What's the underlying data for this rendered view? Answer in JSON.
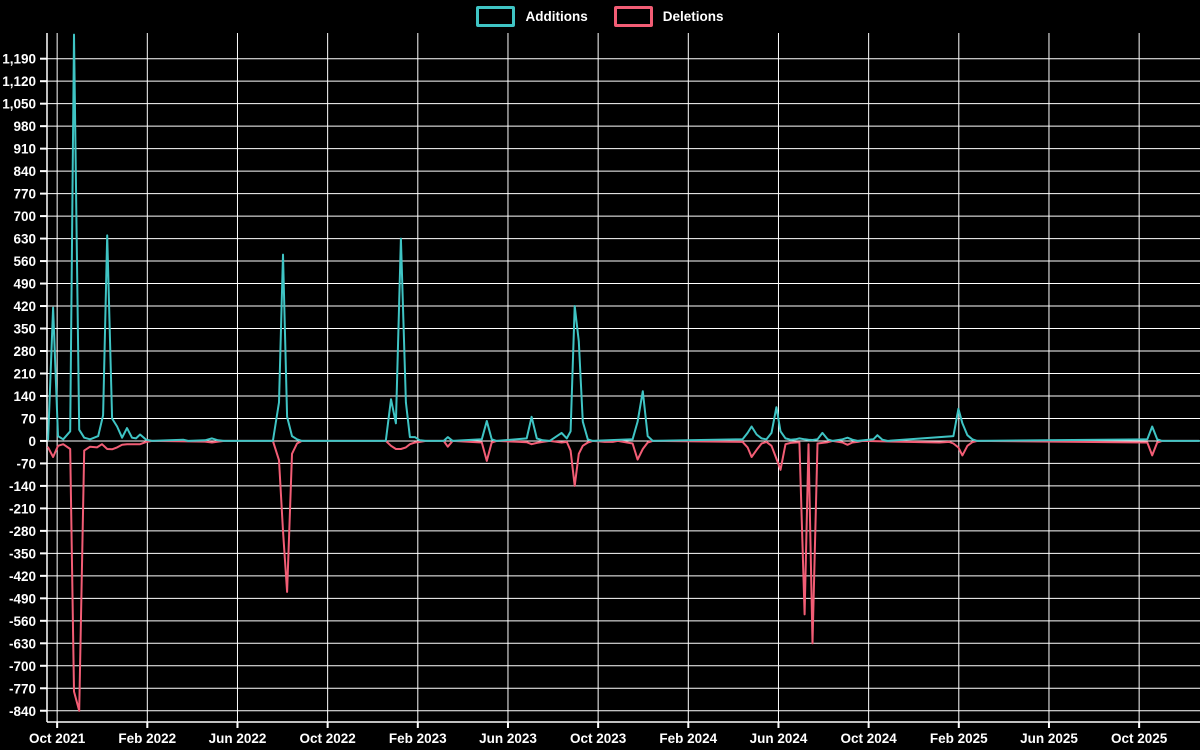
{
  "legend": {
    "items": [
      {
        "label": "Additions",
        "color": "#3fc4c4"
      },
      {
        "label": "Deletions",
        "color": "#f25d75"
      }
    ]
  },
  "chart_data": {
    "type": "line",
    "title": "",
    "xlabel": "",
    "ylabel": "",
    "background": "#000000",
    "grid_color": "#ffffff",
    "text_color": "#ffffff",
    "legend_position": "top-center",
    "x_unit": "months since Oct 2021",
    "x_ticks": [
      {
        "m": 0,
        "label": "Oct 2021"
      },
      {
        "m": 4,
        "label": "Feb 2022"
      },
      {
        "m": 8,
        "label": "Jun 2022"
      },
      {
        "m": 12,
        "label": "Oct 2022"
      },
      {
        "m": 16,
        "label": "Feb 2023"
      },
      {
        "m": 20,
        "label": "Jun 2023"
      },
      {
        "m": 24,
        "label": "Oct 2023"
      },
      {
        "m": 28,
        "label": "Feb 2024"
      },
      {
        "m": 32,
        "label": "Jun 2024"
      },
      {
        "m": 36,
        "label": "Oct 2024"
      },
      {
        "m": 40,
        "label": "Feb 2025"
      },
      {
        "m": 44,
        "label": "Jun 2025"
      },
      {
        "m": 48,
        "label": "Oct 2025"
      }
    ],
    "y_tick_min": -840,
    "y_tick_max": 1190,
    "y_tick_step": 70,
    "xlim": [
      -0.45,
      50.7
    ],
    "ylim": [
      -875,
      1270
    ],
    "series": [
      {
        "name": "Additions",
        "color": "#3fc4c4",
        "points": [
          [
            -0.4,
            5
          ],
          [
            -0.18,
            415
          ],
          [
            0.04,
            15
          ],
          [
            0.27,
            5
          ],
          [
            0.58,
            30
          ],
          [
            0.75,
            1265
          ],
          [
            0.98,
            35
          ],
          [
            1.2,
            10
          ],
          [
            1.46,
            5
          ],
          [
            1.82,
            15
          ],
          [
            2.04,
            80
          ],
          [
            2.22,
            640
          ],
          [
            2.44,
            70
          ],
          [
            2.66,
            45
          ],
          [
            2.88,
            10
          ],
          [
            3.1,
            40
          ],
          [
            3.32,
            10
          ],
          [
            3.5,
            8
          ],
          [
            3.68,
            20
          ],
          [
            3.95,
            4
          ],
          [
            4.21,
            0
          ],
          [
            5.59,
            4
          ],
          [
            5.81,
            0
          ],
          [
            6.56,
            2
          ],
          [
            6.87,
            8
          ],
          [
            7.14,
            2
          ],
          [
            7.4,
            0
          ],
          [
            9.57,
            0
          ],
          [
            9.84,
            120
          ],
          [
            10.02,
            580
          ],
          [
            10.2,
            75
          ],
          [
            10.42,
            15
          ],
          [
            10.64,
            5
          ],
          [
            10.86,
            0
          ],
          [
            14.58,
            0
          ],
          [
            14.81,
            130
          ],
          [
            15.03,
            55
          ],
          [
            15.25,
            630
          ],
          [
            15.47,
            120
          ],
          [
            15.65,
            12
          ],
          [
            15.87,
            12
          ],
          [
            16.09,
            2
          ],
          [
            16.36,
            0
          ],
          [
            17.15,
            0
          ],
          [
            17.33,
            12
          ],
          [
            17.55,
            0
          ],
          [
            18.84,
            5
          ],
          [
            19.06,
            62
          ],
          [
            19.28,
            5
          ],
          [
            19.5,
            0
          ],
          [
            20.83,
            8
          ],
          [
            21.05,
            75
          ],
          [
            21.28,
            8
          ],
          [
            21.54,
            2
          ],
          [
            21.85,
            0
          ],
          [
            22.38,
            25
          ],
          [
            22.61,
            8
          ],
          [
            22.78,
            30
          ],
          [
            22.96,
            420
          ],
          [
            23.14,
            310
          ],
          [
            23.32,
            60
          ],
          [
            23.54,
            5
          ],
          [
            23.76,
            0
          ],
          [
            25.53,
            5
          ],
          [
            25.75,
            60
          ],
          [
            25.98,
            155
          ],
          [
            26.2,
            15
          ],
          [
            26.42,
            0
          ],
          [
            30.41,
            5
          ],
          [
            30.63,
            25
          ],
          [
            30.81,
            45
          ],
          [
            31.03,
            20
          ],
          [
            31.25,
            8
          ],
          [
            31.47,
            5
          ],
          [
            31.69,
            25
          ],
          [
            31.91,
            105
          ],
          [
            32.09,
            30
          ],
          [
            32.31,
            8
          ],
          [
            32.54,
            4
          ],
          [
            32.76,
            5
          ],
          [
            32.93,
            8
          ],
          [
            33.16,
            5
          ],
          [
            33.33,
            4
          ],
          [
            33.51,
            3
          ],
          [
            33.73,
            5
          ],
          [
            33.95,
            25
          ],
          [
            34.18,
            5
          ],
          [
            34.4,
            0
          ],
          [
            34.84,
            5
          ],
          [
            35.06,
            10
          ],
          [
            35.28,
            4
          ],
          [
            35.51,
            0
          ],
          [
            36.21,
            5
          ],
          [
            36.39,
            18
          ],
          [
            36.61,
            4
          ],
          [
            36.83,
            0
          ],
          [
            39.76,
            15
          ],
          [
            39.98,
            100
          ],
          [
            40.16,
            55
          ],
          [
            40.38,
            18
          ],
          [
            40.6,
            5
          ],
          [
            40.82,
            0
          ],
          [
            48.36,
            5
          ],
          [
            48.58,
            45
          ],
          [
            48.8,
            5
          ],
          [
            49.02,
            0
          ],
          [
            50.66,
            0
          ]
        ]
      },
      {
        "name": "Deletions",
        "color": "#f25d75",
        "points": [
          [
            -0.4,
            -20
          ],
          [
            -0.18,
            -50
          ],
          [
            0.04,
            -15
          ],
          [
            0.27,
            -10
          ],
          [
            0.58,
            -25
          ],
          [
            0.75,
            -780
          ],
          [
            0.98,
            -840
          ],
          [
            1.2,
            -30
          ],
          [
            1.46,
            -18
          ],
          [
            1.77,
            -20
          ],
          [
            1.99,
            -10
          ],
          [
            2.22,
            -25
          ],
          [
            2.44,
            -26
          ],
          [
            2.66,
            -20
          ],
          [
            2.88,
            -12
          ],
          [
            3.1,
            -10
          ],
          [
            3.32,
            -10
          ],
          [
            3.68,
            -10
          ],
          [
            3.95,
            -3
          ],
          [
            4.21,
            0
          ],
          [
            6.56,
            -2
          ],
          [
            6.87,
            -5
          ],
          [
            7.14,
            -2
          ],
          [
            7.4,
            0
          ],
          [
            9.57,
            0
          ],
          [
            9.84,
            -60
          ],
          [
            10.02,
            -280
          ],
          [
            10.2,
            -470
          ],
          [
            10.42,
            -40
          ],
          [
            10.64,
            -8
          ],
          [
            10.86,
            0
          ],
          [
            14.58,
            0
          ],
          [
            14.81,
            -15
          ],
          [
            15.03,
            -25
          ],
          [
            15.25,
            -25
          ],
          [
            15.47,
            -20
          ],
          [
            15.65,
            -10
          ],
          [
            15.87,
            -5
          ],
          [
            16.09,
            -3
          ],
          [
            16.36,
            0
          ],
          [
            17.15,
            0
          ],
          [
            17.33,
            -18
          ],
          [
            17.55,
            0
          ],
          [
            18.84,
            -5
          ],
          [
            19.06,
            -62
          ],
          [
            19.28,
            -5
          ],
          [
            19.5,
            0
          ],
          [
            20.52,
            -3
          ],
          [
            20.83,
            -4
          ],
          [
            21.05,
            -10
          ],
          [
            21.28,
            -6
          ],
          [
            21.54,
            -3
          ],
          [
            21.85,
            0
          ],
          [
            22.38,
            -5
          ],
          [
            22.61,
            -3
          ],
          [
            22.78,
            -30
          ],
          [
            22.96,
            -140
          ],
          [
            23.14,
            -40
          ],
          [
            23.32,
            -15
          ],
          [
            23.54,
            -5
          ],
          [
            23.76,
            0
          ],
          [
            24.29,
            -3
          ],
          [
            24.65,
            -3
          ],
          [
            24.87,
            0
          ],
          [
            25.53,
            -8
          ],
          [
            25.75,
            -58
          ],
          [
            25.98,
            -25
          ],
          [
            26.2,
            -5
          ],
          [
            26.42,
            0
          ],
          [
            30.41,
            -3
          ],
          [
            30.63,
            -20
          ],
          [
            30.81,
            -50
          ],
          [
            31.03,
            -28
          ],
          [
            31.25,
            -8
          ],
          [
            31.47,
            -3
          ],
          [
            31.69,
            -15
          ],
          [
            31.91,
            -55
          ],
          [
            32.09,
            -90
          ],
          [
            32.31,
            -10
          ],
          [
            32.54,
            -6
          ],
          [
            32.76,
            -5
          ],
          [
            32.93,
            -4
          ],
          [
            33.16,
            -540
          ],
          [
            33.33,
            -10
          ],
          [
            33.51,
            -630
          ],
          [
            33.73,
            -8
          ],
          [
            33.95,
            -6
          ],
          [
            34.18,
            -4
          ],
          [
            34.4,
            0
          ],
          [
            34.84,
            -5
          ],
          [
            35.06,
            -12
          ],
          [
            35.28,
            -5
          ],
          [
            35.51,
            -3
          ],
          [
            35.73,
            0
          ],
          [
            38.56,
            -4
          ],
          [
            39.14,
            -5
          ],
          [
            39.58,
            -3
          ],
          [
            39.76,
            -8
          ],
          [
            39.98,
            -20
          ],
          [
            40.16,
            -45
          ],
          [
            40.38,
            -15
          ],
          [
            40.6,
            -4
          ],
          [
            40.82,
            0
          ],
          [
            48.36,
            -5
          ],
          [
            48.58,
            -45
          ],
          [
            48.8,
            -5
          ],
          [
            49.02,
            0
          ],
          [
            50.66,
            0
          ]
        ]
      }
    ]
  }
}
